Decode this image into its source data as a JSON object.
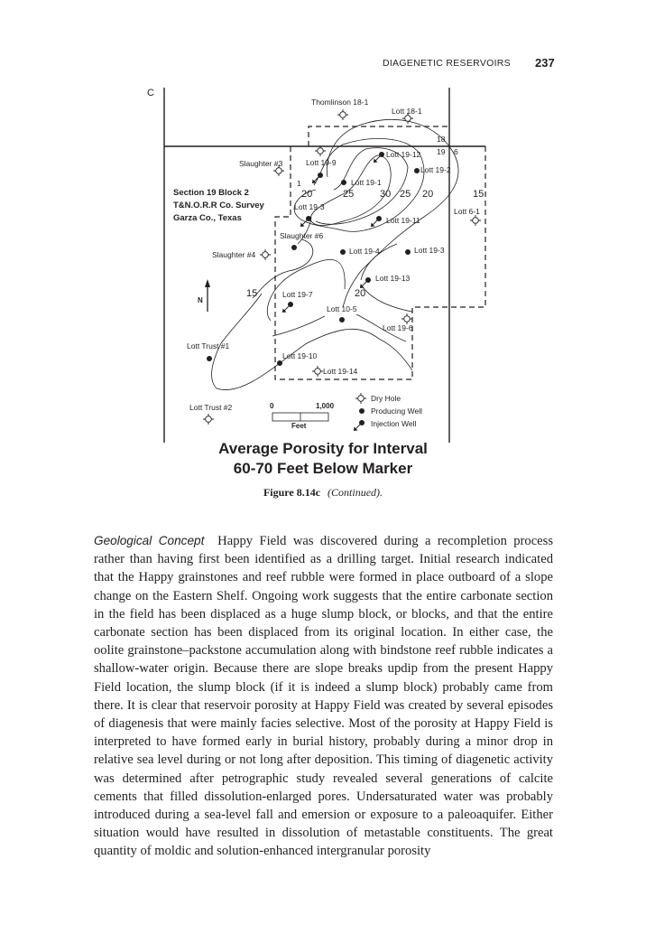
{
  "header": {
    "running_title": "DIAGENETIC RESERVOIRS",
    "page_number": "237"
  },
  "figure": {
    "panel_letter": "C",
    "section_label": [
      "Section 19  Block 2",
      "T&N.O.R.R Co. Survey",
      "Garza Co., Texas"
    ],
    "section_numbers": [
      "18",
      "19",
      "6"
    ],
    "contour_labels": [
      "20",
      "25",
      "30",
      "25",
      "20",
      "15",
      "15",
      "20",
      "1"
    ],
    "north_label": "N",
    "wells": [
      {
        "name": "Thomlinson 18-1",
        "type": "dry-hole"
      },
      {
        "name": "Lott 18-1",
        "type": "dry-hole"
      },
      {
        "name": "Slaughter #3",
        "type": "dry-hole"
      },
      {
        "name": "Lott 19-9",
        "type": "injection-well"
      },
      {
        "name": "Lott 19-12",
        "type": "injection-well"
      },
      {
        "name": "Lott 19-2",
        "type": "producing-well"
      },
      {
        "name": "Lott 19-1",
        "type": "producing-well"
      },
      {
        "name": "Lott 19-3",
        "type": "injection-well"
      },
      {
        "name": "Lott 19-11",
        "type": "injection-well"
      },
      {
        "name": "Lott 6-1",
        "type": "dry-hole"
      },
      {
        "name": "Slaughter #6",
        "type": "producing-well"
      },
      {
        "name": "Slaughter #4",
        "type": "dry-hole"
      },
      {
        "name": "Lott 19-4",
        "type": "producing-well"
      },
      {
        "name": "Lott 19-3",
        "type": "producing-well"
      },
      {
        "name": "Lott 19-13",
        "type": "injection-well"
      },
      {
        "name": "Lott 19-7",
        "type": "injection-well"
      },
      {
        "name": "Lott 10-5",
        "type": "producing-well"
      },
      {
        "name": "Lott 19-6",
        "type": "dry-hole"
      },
      {
        "name": "Lott Trust #1",
        "type": "producing-well"
      },
      {
        "name": "Lott 19-10",
        "type": "producing-well"
      },
      {
        "name": "Lott 19-14",
        "type": "dry-hole"
      },
      {
        "name": "Lott Trust #2",
        "type": "dry-hole"
      }
    ],
    "scale": {
      "start": "0",
      "end": "1,000",
      "unit": "Feet"
    },
    "legend": {
      "dry_hole": "Dry Hole",
      "producing_well": "Producing Well",
      "injection_well": "Injection Well"
    },
    "title_line1": "Average Porosity for Interval",
    "title_line2": "60-70 Feet Below Marker",
    "caption_label": "Figure 8.14c",
    "caption_text": "(Continued)."
  },
  "body": {
    "lead": "Geological Concept",
    "text": "Happy Field was discovered during a recompletion process rather than having first been identified as a drilling target. Initial research indicated that the Happy grainstones and reef rubble were formed in place outboard of a slope change on the Eastern Shelf. Ongoing work suggests that the entire carbonate section in the field has been displaced as a huge slump block, or blocks, and that the entire carbonate section has been displaced from its original location. In either case, the oolite grainstone–packstone accumulation along with bindstone reef rubble indicates a shallow-water origin. Because there are slope breaks updip from the present Happy Field location, the slump block (if it is indeed a slump block) probably came from there. It is clear that reservoir porosity at Happy Field was created by several episodes of diagenesis that were mainly facies selective. Most of the porosity at Happy Field is interpreted to have formed early in burial history, probably during a minor drop in relative sea level during or not long after deposition. This timing of diagenetic activity was determined after petrographic study revealed several generations of calcite cements that filled dissolution-enlarged pores. Undersaturated water was probably introduced during a sea-level fall and emersion or exposure to a paleoaquifer. Either situation would have resulted in dissolution of metastable constituents. The great quantity of moldic and solution-enhanced intergranular porosity"
  }
}
